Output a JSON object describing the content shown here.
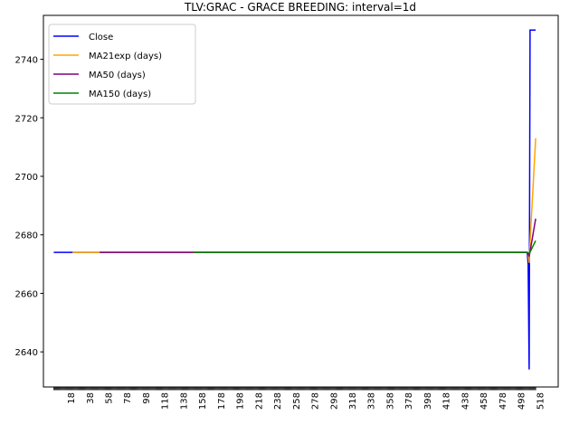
{
  "chart_data": {
    "type": "line",
    "title": "TLV:GRAC - GRACE BREEDING: interval=1d",
    "xlabel": "",
    "ylabel": "",
    "xlim": [
      -11,
      538
    ],
    "ylim": [
      2628,
      2755
    ],
    "yticks": [
      2640,
      2660,
      2680,
      2700,
      2720,
      2740
    ],
    "xticks": [
      18,
      38,
      58,
      78,
      98,
      118,
      138,
      158,
      178,
      198,
      218,
      238,
      258,
      278,
      298,
      318,
      338,
      358,
      378,
      398,
      418,
      438,
      458,
      478,
      498,
      518
    ],
    "xtick_label_rotation": "vertical",
    "legend_position": "upper-left",
    "grid": false,
    "series": [
      {
        "name": "Close",
        "color": "#0000ff",
        "x": [
          0,
          505,
          506,
          507,
          508,
          509,
          510,
          511,
          512,
          513,
          514
        ],
        "y": [
          2674,
          2674,
          2670,
          2634,
          2750,
          2750,
          2750,
          2750,
          2750,
          2750,
          2750
        ]
      },
      {
        "name": "MA21exp (days)",
        "color": "#ffa500",
        "x": [
          20,
          505,
          506,
          507,
          508,
          514
        ],
        "y": [
          2674,
          2674,
          2673.6,
          2670.4,
          2677.5,
          2713
        ]
      },
      {
        "name": "MA50 (days)",
        "color": "#800080",
        "x": [
          49,
          505,
          507,
          508,
          514
        ],
        "y": [
          2674,
          2674,
          2672.8,
          2674.3,
          2685.5
        ]
      },
      {
        "name": "MA150 (days)",
        "color": "#008000",
        "x": [
          149,
          505,
          507,
          508,
          514
        ],
        "y": [
          2674,
          2674,
          2673.6,
          2674.1,
          2678
        ]
      }
    ]
  }
}
